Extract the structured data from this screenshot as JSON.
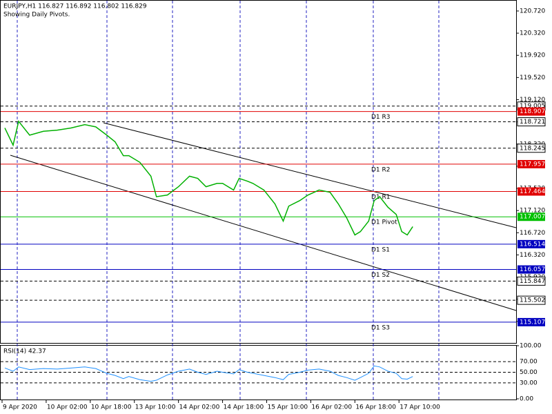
{
  "chart_data": {
    "type": "line",
    "title": "EURJPY,H1  116.827 116.892 116.802 116.829",
    "subtitle": "Showing Daily Pivots.",
    "x": [
      1,
      4,
      6,
      10,
      15,
      20,
      25,
      30,
      34,
      38,
      41,
      44,
      46,
      50,
      54,
      56,
      60,
      64,
      68,
      71,
      74,
      78,
      80,
      84,
      86,
      89,
      91,
      95,
      99,
      102,
      104,
      108,
      111,
      115,
      119,
      122,
      125,
      128,
      130,
      133,
      135,
      137,
      140,
      143,
      145,
      147,
      149
    ],
    "series": [
      {
        "name": "EURJPY",
        "color": "#00b000",
        "values": [
          118.61,
          118.3,
          118.73,
          118.48,
          118.55,
          118.57,
          118.61,
          118.67,
          118.63,
          118.48,
          118.36,
          118.11,
          118.11,
          117.99,
          117.74,
          117.37,
          117.4,
          117.55,
          117.74,
          117.7,
          117.55,
          117.61,
          117.61,
          117.49,
          117.7,
          117.65,
          117.61,
          117.49,
          117.24,
          116.93,
          117.2,
          117.3,
          117.4,
          117.49,
          117.45,
          117.24,
          116.99,
          116.68,
          116.74,
          116.93,
          117.3,
          117.37,
          117.18,
          117.05,
          116.74,
          116.68,
          116.83
        ]
      }
    ],
    "xlim": [
      -0.5,
      186.5
    ],
    "xticks": [
      {
        "value": 0,
        "label": "9 Apr 2020"
      },
      {
        "value": 16,
        "label": "10 Apr 02:00"
      },
      {
        "value": 32,
        "label": "10 Apr 18:00"
      },
      {
        "value": 48,
        "label": "13 Apr 10:00"
      },
      {
        "value": 64,
        "label": "14 Apr 02:00"
      },
      {
        "value": 80,
        "label": "14 Apr 18:00"
      },
      {
        "value": 96,
        "label": "15 Apr 10:00"
      },
      {
        "value": 112,
        "label": "16 Apr 02:00"
      },
      {
        "value": 128,
        "label": "16 Apr 18:00"
      },
      {
        "value": 144,
        "label": "17 Apr 10:00"
      }
    ],
    "ylim": [
      114.732,
      120.906
    ],
    "yticks": [
      {
        "value": 120.72,
        "label": "120.720"
      },
      {
        "value": 120.32,
        "label": "120.320"
      },
      {
        "value": 119.92,
        "label": "119.920"
      },
      {
        "value": 119.52,
        "label": "119.520"
      },
      {
        "value": 119.12,
        "label": "119.120"
      },
      {
        "value": 118.72,
        "label": "118.720"
      },
      {
        "value": 118.32,
        "label": "118.320"
      },
      {
        "value": 117.92,
        "label": "117.920"
      },
      {
        "value": 117.52,
        "label": "117.520"
      },
      {
        "value": 117.12,
        "label": "117.120"
      },
      {
        "value": 116.72,
        "label": "116.720"
      },
      {
        "value": 116.32,
        "label": "116.320"
      },
      {
        "value": 115.92,
        "label": "115.920"
      },
      {
        "value": 115.52,
        "label": "115.520"
      },
      {
        "value": 115.12,
        "label": "115.120"
      }
    ],
    "pivots": [
      {
        "name": "D1 R3",
        "value": 118.907,
        "color": "#e00000"
      },
      {
        "name": "D1 R2",
        "value": 117.957,
        "color": "#e00000"
      },
      {
        "name": "D1 R1",
        "value": 117.464,
        "color": "#e00000"
      },
      {
        "name": "D1 Pivot",
        "value": 117.007,
        "color": "#00c000"
      },
      {
        "name": "D1 S1",
        "value": 116.514,
        "color": "#0000c0"
      },
      {
        "name": "D1 S2",
        "value": 116.057,
        "color": "#0000c0"
      },
      {
        "name": "D1 S3",
        "value": 115.107,
        "color": "#0000c0"
      }
    ],
    "levels": [
      119.005,
      118.721,
      118.245,
      115.847,
      115.502
    ],
    "rsi": {
      "title": "RSI(14) 42.37",
      "color": "#1e90ff",
      "values": [
        58,
        52,
        60,
        55,
        57,
        56,
        58,
        60,
        57,
        48,
        44,
        38,
        42,
        36,
        33,
        35,
        45,
        52,
        56,
        50,
        46,
        52,
        50,
        47,
        55,
        50,
        48,
        44,
        40,
        36,
        46,
        50,
        54,
        56,
        52,
        44,
        40,
        35,
        40,
        48,
        62,
        60,
        52,
        48,
        38,
        37,
        42
      ],
      "ylim": [
        0,
        100
      ],
      "yticks": [
        {
          "value": 100,
          "label": "100.00"
        },
        {
          "value": 70,
          "label": "70.00"
        },
        {
          "value": 50,
          "label": "50.00"
        },
        {
          "value": 30,
          "label": "30.00"
        },
        {
          "value": 0,
          "label": "0.00"
        }
      ]
    }
  }
}
